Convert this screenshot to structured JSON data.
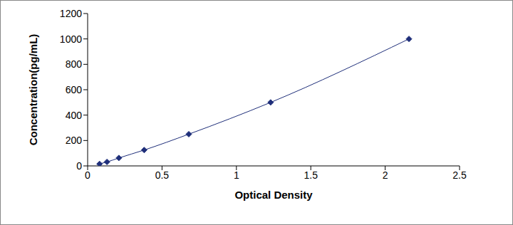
{
  "chart_data": {
    "type": "line",
    "x_label": "Optical Density",
    "y_label": "Concentration(pg/mL)",
    "x": [
      0.08,
      0.13,
      0.21,
      0.38,
      0.68,
      1.23,
      2.16
    ],
    "values": [
      15.6,
      31.2,
      62.5,
      125,
      250,
      500,
      1000
    ],
    "color": "#1f2f7a",
    "marker": "diamond",
    "xlim": [
      0,
      2.5
    ],
    "xticks": [
      0,
      0.5,
      1,
      1.5,
      2,
      2.5
    ],
    "ylim": [
      0,
      1200
    ],
    "yticks": [
      0,
      200,
      400,
      600,
      800,
      1000,
      1200
    ],
    "grid": false
  }
}
